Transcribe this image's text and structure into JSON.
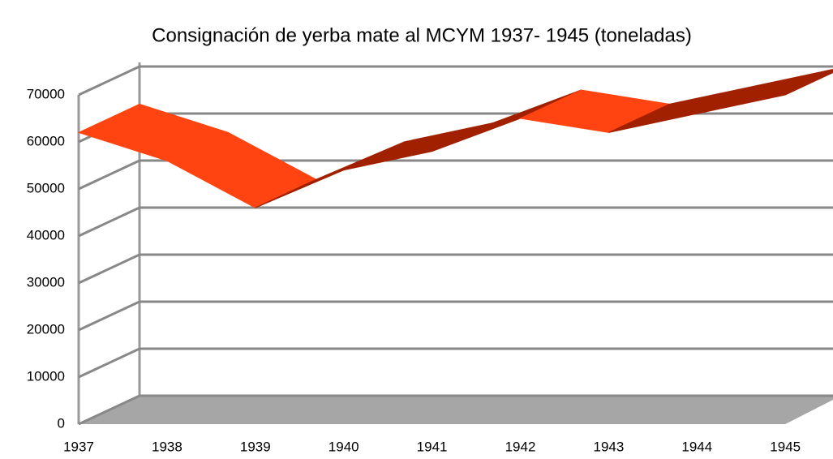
{
  "chart_data": {
    "type": "line3d",
    "title": "Consignación de yerba mate al MCYM 1937- 1945 (toneladas)",
    "categories": [
      "1937",
      "1938",
      "1939",
      "1940",
      "1941",
      "1942",
      "1943",
      "1944",
      "1945"
    ],
    "values": [
      62000,
      56000,
      46000,
      54000,
      58000,
      65000,
      62000,
      66000,
      70000
    ],
    "color": "#ff4411",
    "side_color": "#a02000",
    "ylim": [
      0,
      70000
    ],
    "yticks": [
      0,
      10000,
      20000,
      30000,
      40000,
      50000,
      60000,
      70000
    ],
    "grid": true
  }
}
